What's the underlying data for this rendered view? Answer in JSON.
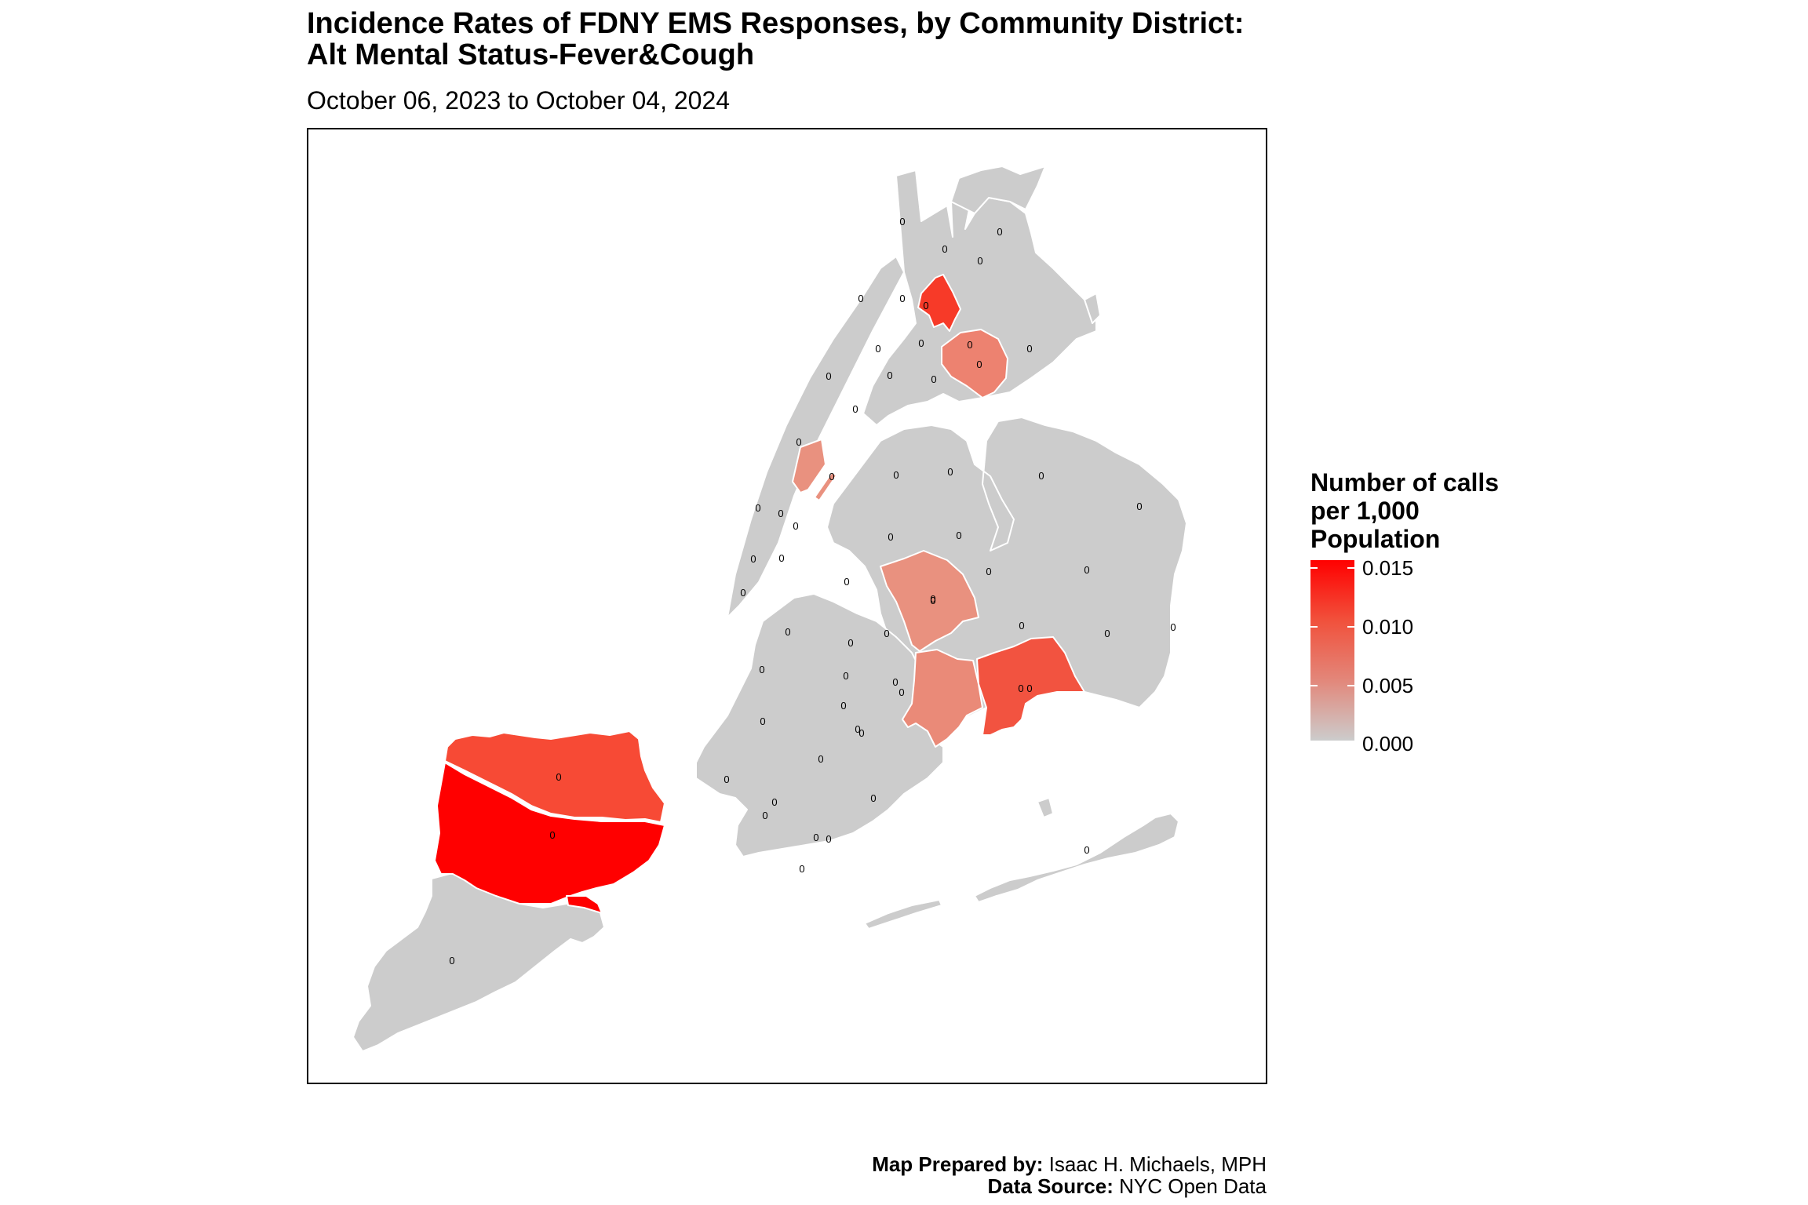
{
  "title": {
    "line1": "Incidence Rates of FDNY EMS Responses, by Community District:",
    "line2": "Alt Mental Status-Fever&Cough"
  },
  "subtitle": "October 06, 2023 to October 04, 2024",
  "legend": {
    "title_lines": [
      "Number of calls",
      "per 1,000",
      "Population"
    ],
    "labels": [
      "0.015",
      "0.010",
      "0.005",
      "0.000"
    ],
    "range": [
      0,
      0.015
    ],
    "colors": {
      "low": "#cccccc",
      "high": "#ff0000"
    }
  },
  "caption": {
    "prepared_label": "Map Prepared by:",
    "prepared_value": "Isaac H. Michaels, MPH",
    "source_label": "Data Source:",
    "source_value": "NYC Open Data"
  },
  "map": {
    "district_label": "0",
    "highlighted_districts": [
      {
        "borough": "Staten Island",
        "rate": 0.015
      },
      {
        "borough": "Staten Island",
        "rate": 0.012
      },
      {
        "borough": "Bronx",
        "rate": 0.013
      },
      {
        "borough": "Bronx",
        "rate": 0.008
      },
      {
        "borough": "Manhattan",
        "rate": 0.007
      },
      {
        "borough": "Queens",
        "rate": 0.006
      },
      {
        "borough": "Brooklyn",
        "rate": 0.007
      },
      {
        "borough": "Queens",
        "rate": 0.011
      }
    ]
  }
}
